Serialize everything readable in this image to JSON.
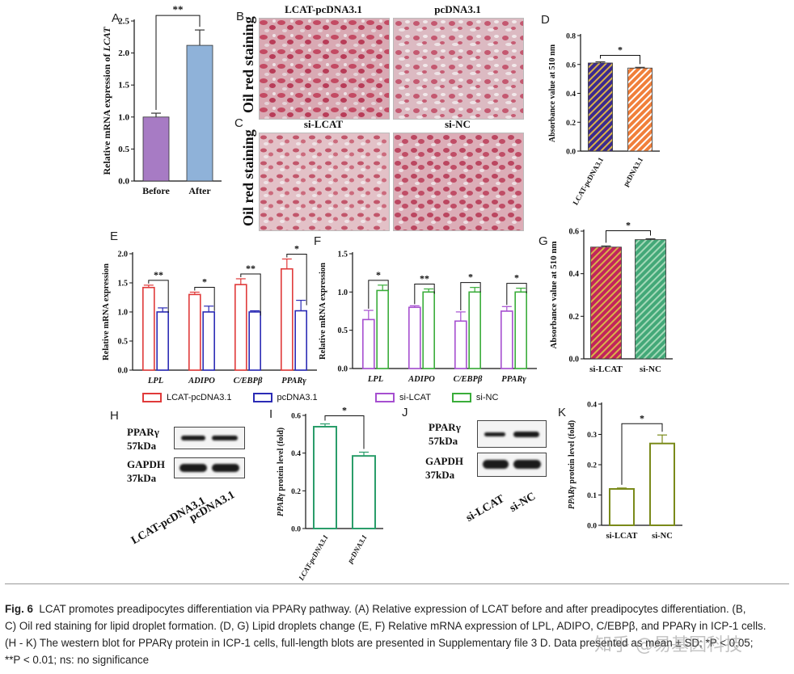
{
  "panels": {
    "A": "A",
    "B": "B",
    "C": "C",
    "D": "D",
    "E": "E",
    "F": "F",
    "G": "G",
    "H": "H",
    "I": "I",
    "J": "J",
    "K": "K"
  },
  "staining": {
    "side_label": "Oil red staining",
    "b_left": "LCAT-pcDNA3.1",
    "b_right": "pcDNA3.1",
    "c_left": "si-LCAT",
    "c_right": "si-NC"
  },
  "legend_e": {
    "a": "LCAT-pcDNA3.1",
    "b": "pcDNA3.1"
  },
  "legend_f": {
    "a": "si-LCAT",
    "b": "si-NC"
  },
  "blot_h": {
    "target": "PPARγ",
    "target_size": "57kDa",
    "control": "GAPDH",
    "control_size": "37kDa",
    "lane1": "LCAT-pcDNA3.1",
    "lane2": "pcDNA3.1"
  },
  "blot_j": {
    "target": "PPARγ",
    "target_size": "57kDa",
    "control": "GAPDH",
    "control_size": "37kDa",
    "lane1": "si-LCAT",
    "lane2": "si-NC"
  },
  "chart_data": [
    {
      "id": "A",
      "type": "bar",
      "categories": [
        "Before",
        "After"
      ],
      "values": [
        1.0,
        2.12
      ],
      "errors": [
        0.06,
        0.24
      ],
      "colors": [
        "#a77bc4",
        "#8fb2d9"
      ],
      "ylabel_prefix": "Relative mRNA expression of ",
      "ylabel_italic": "LCAT",
      "ylim": [
        0,
        2.5
      ],
      "yticks": [
        "0.0",
        "0.5",
        "1.0",
        "1.5",
        "2.0",
        "2.5"
      ],
      "significance": [
        {
          "from": 0,
          "to": 1,
          "label": "**"
        }
      ]
    },
    {
      "id": "D",
      "type": "bar",
      "categories": [
        "LCAT-pcDNA3.1",
        "pcDNA3.1"
      ],
      "values": [
        0.61,
        0.575
      ],
      "errors": [
        0.008,
        0.005
      ],
      "colors": [
        "#3b2a8f",
        "#f07f3a"
      ],
      "stripe_colors": [
        "#d9b24a",
        "#ffffff"
      ],
      "ylabel": "Absorbance value at 510 nm",
      "ylim": [
        0,
        0.8
      ],
      "yticks": [
        "0.0",
        "0.2",
        "0.4",
        "0.6",
        "0.8"
      ],
      "significance": [
        {
          "from": 0,
          "to": 1,
          "label": "*"
        }
      ]
    },
    {
      "id": "E",
      "type": "bar",
      "categories": [
        "LPL",
        "ADIPO",
        "C/EBPβ",
        "PPARγ"
      ],
      "ylabel": "Relative mRNA expression",
      "ylim": [
        0,
        2.0
      ],
      "yticks": [
        "0.0",
        "0.5",
        "1.0",
        "1.5",
        "2.0"
      ],
      "series": [
        {
          "name": "LCAT-pcDNA3.1",
          "color": "#e03a3a",
          "values": [
            1.42,
            1.3,
            1.47,
            1.74
          ],
          "errors": [
            0.04,
            0.04,
            0.1,
            0.17
          ]
        },
        {
          "name": "pcDNA3.1",
          "color": "#2b2bb5",
          "values": [
            1.0,
            1.0,
            1.0,
            1.02
          ],
          "errors": [
            0.07,
            0.1,
            0.02,
            0.18
          ]
        }
      ],
      "significance": [
        "**",
        "*",
        "**",
        "*"
      ]
    },
    {
      "id": "F",
      "type": "bar",
      "categories": [
        "LPL",
        "ADIPO",
        "C/EBPβ",
        "PPARγ"
      ],
      "ylabel": "Relative mRNA expression",
      "ylim": [
        0,
        1.5
      ],
      "yticks": [
        "0.0",
        "0.5",
        "1.0",
        "1.5"
      ],
      "series": [
        {
          "name": "si-LCAT",
          "color": "#a64fd0",
          "values": [
            0.64,
            0.8,
            0.62,
            0.75
          ],
          "errors": [
            0.12,
            0.02,
            0.12,
            0.06
          ]
        },
        {
          "name": "si-NC",
          "color": "#3aad3a",
          "values": [
            1.02,
            1.0,
            1.0,
            1.0
          ],
          "errors": [
            0.07,
            0.04,
            0.06,
            0.05
          ]
        }
      ],
      "significance": [
        "*",
        "**",
        "*",
        "*"
      ]
    },
    {
      "id": "G",
      "type": "bar",
      "categories": [
        "si-LCAT",
        "si-NC"
      ],
      "values": [
        0.525,
        0.56
      ],
      "errors": [
        0.005,
        0.004
      ],
      "colors": [
        "#c2245d",
        "#43a878"
      ],
      "stripe_colors": [
        "#d9b24a",
        "#a4d9b8"
      ],
      "ylabel": "Absorbance value at 510 nm",
      "ylim": [
        0,
        0.6
      ],
      "yticks": [
        "0.0",
        "0.2",
        "0.4",
        "0.6"
      ],
      "significance": [
        {
          "from": 0,
          "to": 1,
          "label": "*"
        }
      ]
    },
    {
      "id": "I",
      "type": "bar",
      "categories": [
        "LCAT-pcDNA3.1",
        "pcDNA3.1"
      ],
      "values": [
        0.54,
        0.385
      ],
      "errors": [
        0.015,
        0.02
      ],
      "colors": [
        "#2a9d6a",
        "#2a9d6a"
      ],
      "ylabel_italic": "PPARγ",
      "ylabel_suffix": " protein level (fold)",
      "ylim": [
        0,
        0.6
      ],
      "yticks": [
        "0.0",
        "0.2",
        "0.4",
        "0.6"
      ],
      "significance": [
        {
          "from": 0,
          "to": 1,
          "label": "*"
        }
      ]
    },
    {
      "id": "K",
      "type": "bar",
      "categories": [
        "si-LCAT",
        "si-NC"
      ],
      "values": [
        0.12,
        0.27
      ],
      "errors": [
        0.003,
        0.028
      ],
      "colors": [
        "#7a8a1a",
        "#7a8a1a"
      ],
      "ylabel_italic": "PPARγ",
      "ylabel_suffix": " protein level (fold)",
      "ylim": [
        0,
        0.4
      ],
      "yticks": [
        "0.0",
        "0.1",
        "0.2",
        "0.3",
        "0.4"
      ],
      "significance": [
        {
          "from": 0,
          "to": 1,
          "label": "*"
        }
      ]
    }
  ],
  "caption": {
    "fig": "Fig. 6",
    "lines": [
      "LCAT promotes preadipocytes differentiation via PPARγ pathway. (A) Relative expression of LCAT before and after preadipocytes differentiation. (B,",
      "C) Oil red staining for lipid droplet formation. (D, G) Lipid droplets change (E, F) Relative mRNA expression of LPL, ADIPO, C/EBPβ, and PPARγ in ICP-1 cells.",
      "(H - K) The western blot for PPARγ protein in ICP-1 cells, full-length blots are presented in Supplementary file 3 D. Data presented as mean ± SD; *P < 0.05;",
      "**P < 0.01; ns: no significance"
    ]
  },
  "watermark": "知乎 @易基因科技"
}
